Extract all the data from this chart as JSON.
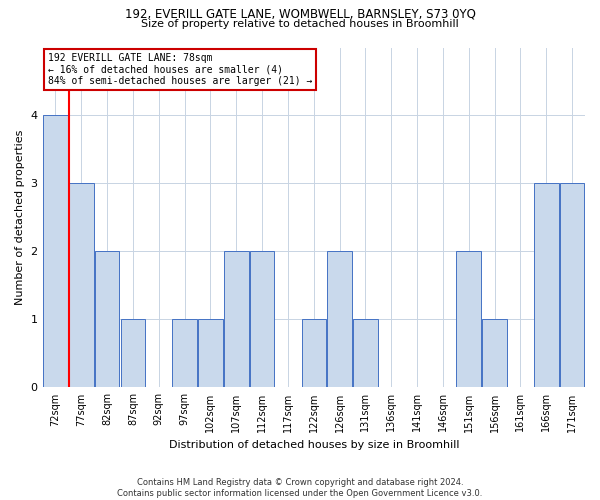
{
  "title1": "192, EVERILL GATE LANE, WOMBWELL, BARNSLEY, S73 0YQ",
  "title2": "Size of property relative to detached houses in Broomhill",
  "xlabel": "Distribution of detached houses by size in Broomhill",
  "ylabel": "Number of detached properties",
  "footnote": "Contains HM Land Registry data © Crown copyright and database right 2024.\nContains public sector information licensed under the Open Government Licence v3.0.",
  "bin_labels": [
    "72sqm",
    "77sqm",
    "82sqm",
    "87sqm",
    "92sqm",
    "97sqm",
    "102sqm",
    "107sqm",
    "112sqm",
    "117sqm",
    "122sqm",
    "126sqm",
    "131sqm",
    "136sqm",
    "141sqm",
    "146sqm",
    "151sqm",
    "156sqm",
    "161sqm",
    "166sqm",
    "171sqm"
  ],
  "bar_values": [
    4,
    3,
    2,
    1,
    0,
    1,
    1,
    2,
    2,
    0,
    1,
    2,
    1,
    0,
    0,
    0,
    2,
    1,
    0,
    3,
    3
  ],
  "bar_color": "#c9d9ec",
  "bar_edge_color": "#4472c4",
  "property_line_x": 0.525,
  "annotation_text": "192 EVERILL GATE LANE: 78sqm\n← 16% of detached houses are smaller (4)\n84% of semi-detached houses are larger (21) →",
  "annotation_box_color": "#ffffff",
  "annotation_box_edge_color": "#cc0000",
  "ylim": [
    0,
    5
  ],
  "yticks": [
    0,
    1,
    2,
    3,
    4
  ],
  "background_color": "#ffffff",
  "grid_color": "#c8d4e3"
}
